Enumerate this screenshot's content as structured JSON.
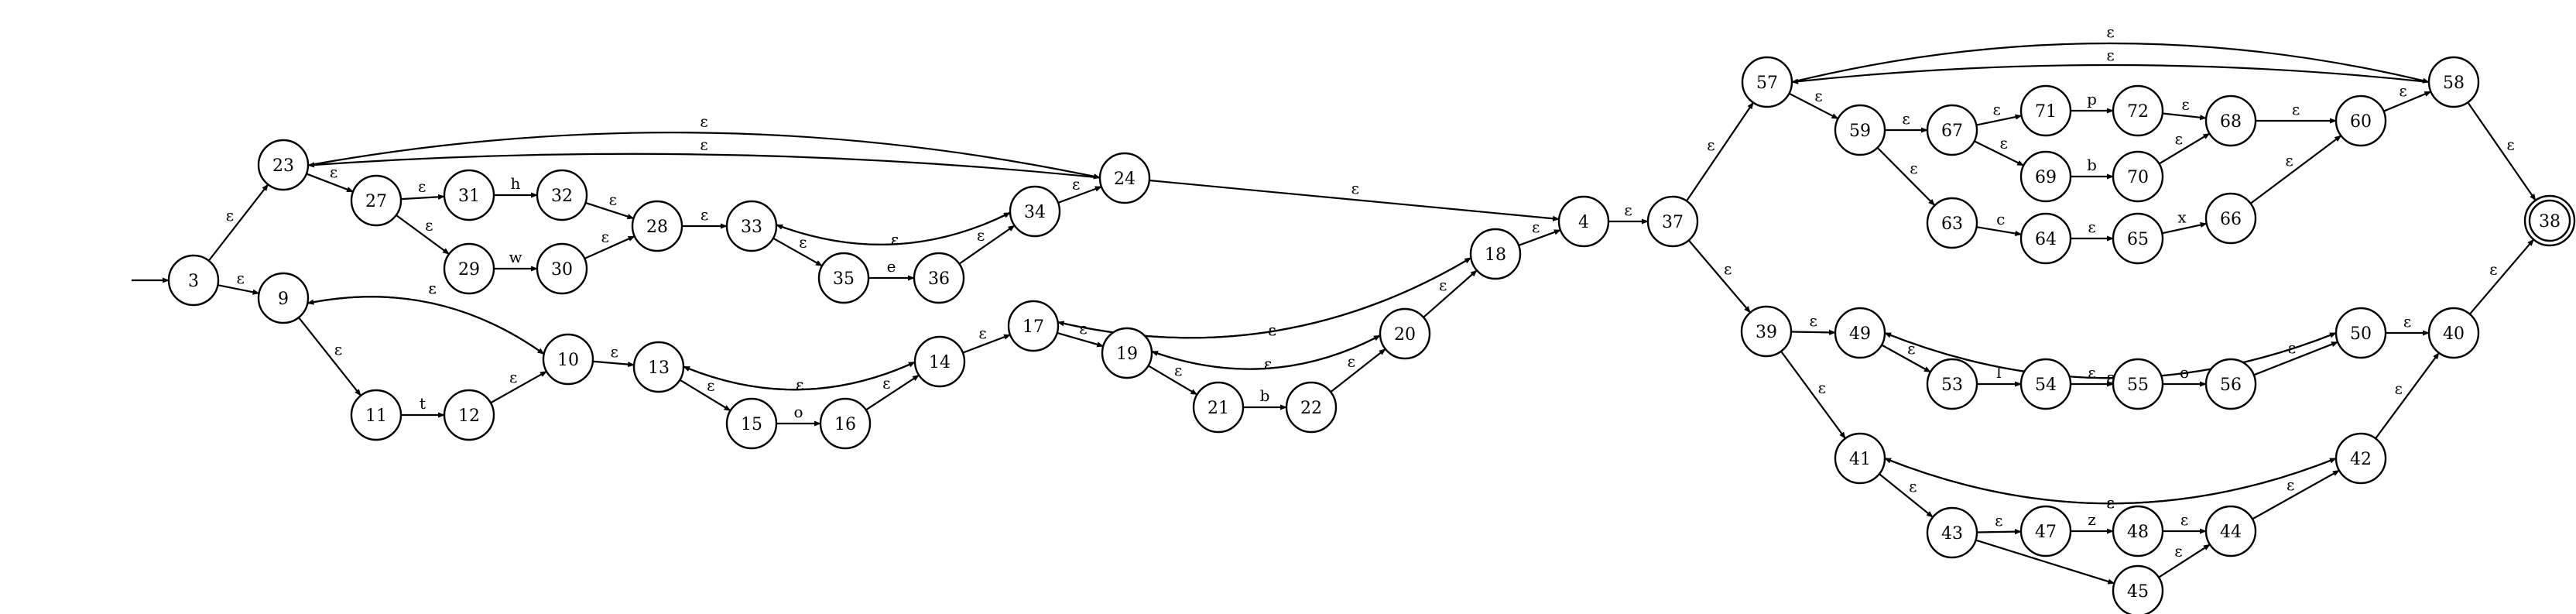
{
  "diagram": {
    "type": "nfa",
    "start_state": "3",
    "accept_states": [
      "38"
    ],
    "states": [
      "3",
      "9",
      "10",
      "11",
      "12",
      "13",
      "14",
      "15",
      "16",
      "17",
      "18",
      "19",
      "20",
      "21",
      "22",
      "23",
      "24",
      "27",
      "28",
      "29",
      "30",
      "31",
      "32",
      "33",
      "34",
      "35",
      "36",
      "4",
      "37",
      "38",
      "39",
      "40",
      "41",
      "42",
      "43",
      "44",
      "45",
      "47",
      "48",
      "49",
      "50",
      "53",
      "54",
      "55",
      "56",
      "57",
      "58",
      "59",
      "60",
      "63",
      "64",
      "65",
      "66",
      "67",
      "68",
      "69",
      "70",
      "71",
      "72"
    ],
    "transitions": [
      {
        "from": "3",
        "to": "23",
        "label": "ε"
      },
      {
        "from": "3",
        "to": "9",
        "label": "ε"
      },
      {
        "from": "23",
        "to": "27",
        "label": "ε"
      },
      {
        "from": "23",
        "to": "24",
        "label": "ε"
      },
      {
        "from": "24",
        "to": "23",
        "label": "ε"
      },
      {
        "from": "27",
        "to": "31",
        "label": "ε"
      },
      {
        "from": "27",
        "to": "29",
        "label": "ε"
      },
      {
        "from": "31",
        "to": "32",
        "label": "h"
      },
      {
        "from": "29",
        "to": "30",
        "label": "w"
      },
      {
        "from": "32",
        "to": "28",
        "label": "ε"
      },
      {
        "from": "30",
        "to": "28",
        "label": "ε"
      },
      {
        "from": "28",
        "to": "33",
        "label": "ε"
      },
      {
        "from": "33",
        "to": "34",
        "label": "ε"
      },
      {
        "from": "34",
        "to": "33",
        "label": "ε"
      },
      {
        "from": "33",
        "to": "35",
        "label": "ε"
      },
      {
        "from": "35",
        "to": "36",
        "label": "e"
      },
      {
        "from": "36",
        "to": "34",
        "label": "ε"
      },
      {
        "from": "34",
        "to": "24",
        "label": "ε"
      },
      {
        "from": "24",
        "to": "4",
        "label": "ε"
      },
      {
        "from": "9",
        "to": "10",
        "label": "ε"
      },
      {
        "from": "10",
        "to": "9",
        "label": "ε"
      },
      {
        "from": "9",
        "to": "11",
        "label": "ε"
      },
      {
        "from": "11",
        "to": "12",
        "label": "t"
      },
      {
        "from": "12",
        "to": "10",
        "label": "ε"
      },
      {
        "from": "10",
        "to": "13",
        "label": "ε"
      },
      {
        "from": "13",
        "to": "14",
        "label": "ε"
      },
      {
        "from": "14",
        "to": "13",
        "label": "ε"
      },
      {
        "from": "13",
        "to": "15",
        "label": "ε"
      },
      {
        "from": "15",
        "to": "16",
        "label": "o"
      },
      {
        "from": "16",
        "to": "14",
        "label": "ε"
      },
      {
        "from": "14",
        "to": "17",
        "label": "ε"
      },
      {
        "from": "17",
        "to": "18",
        "label": "ε"
      },
      {
        "from": "18",
        "to": "17",
        "label": "ε"
      },
      {
        "from": "17",
        "to": "19",
        "label": "ε"
      },
      {
        "from": "19",
        "to": "20",
        "label": "ε"
      },
      {
        "from": "20",
        "to": "19",
        "label": "ε"
      },
      {
        "from": "19",
        "to": "21",
        "label": "ε"
      },
      {
        "from": "21",
        "to": "22",
        "label": "b"
      },
      {
        "from": "22",
        "to": "20",
        "label": "ε"
      },
      {
        "from": "20",
        "to": "18",
        "label": "ε"
      },
      {
        "from": "18",
        "to": "4",
        "label": "ε"
      },
      {
        "from": "4",
        "to": "37",
        "label": "ε"
      },
      {
        "from": "37",
        "to": "57",
        "label": "ε"
      },
      {
        "from": "37",
        "to": "39",
        "label": "ε"
      },
      {
        "from": "57",
        "to": "58",
        "label": "ε"
      },
      {
        "from": "58",
        "to": "57",
        "label": "ε"
      },
      {
        "from": "57",
        "to": "59",
        "label": "ε"
      },
      {
        "from": "59",
        "to": "67",
        "label": "ε"
      },
      {
        "from": "59",
        "to": "63",
        "label": "ε"
      },
      {
        "from": "67",
        "to": "71",
        "label": "ε"
      },
      {
        "from": "67",
        "to": "69",
        "label": "ε"
      },
      {
        "from": "71",
        "to": "72",
        "label": "p"
      },
      {
        "from": "72",
        "to": "68",
        "label": "ε"
      },
      {
        "from": "69",
        "to": "70",
        "label": "b"
      },
      {
        "from": "70",
        "to": "68",
        "label": "ε"
      },
      {
        "from": "68",
        "to": "60",
        "label": "ε"
      },
      {
        "from": "63",
        "to": "64",
        "label": "c"
      },
      {
        "from": "64",
        "to": "65",
        "label": "ε"
      },
      {
        "from": "65",
        "to": "66",
        "label": "x"
      },
      {
        "from": "66",
        "to": "60",
        "label": "ε"
      },
      {
        "from": "60",
        "to": "58",
        "label": "ε"
      },
      {
        "from": "58",
        "to": "38",
        "label": "ε"
      },
      {
        "from": "39",
        "to": "49",
        "label": "ε"
      },
      {
        "from": "39",
        "to": "41",
        "label": "ε"
      },
      {
        "from": "49",
        "to": "50",
        "label": "ε"
      },
      {
        "from": "50",
        "to": "49",
        "label": "ε"
      },
      {
        "from": "49",
        "to": "53",
        "label": "ε"
      },
      {
        "from": "53",
        "to": "54",
        "label": "l"
      },
      {
        "from": "54",
        "to": "55",
        "label": "ε"
      },
      {
        "from": "55",
        "to": "56",
        "label": "o"
      },
      {
        "from": "56",
        "to": "50",
        "label": "ε"
      },
      {
        "from": "50",
        "to": "40",
        "label": "ε"
      },
      {
        "from": "41",
        "to": "42",
        "label": "ε"
      },
      {
        "from": "42",
        "to": "41",
        "label": "ε"
      },
      {
        "from": "41",
        "to": "43",
        "label": "ε"
      },
      {
        "from": "43",
        "to": "47",
        "label": "ε"
      },
      {
        "from": "43",
        "to": "45",
        "label": "ε"
      },
      {
        "from": "47",
        "to": "48",
        "label": "z"
      },
      {
        "from": "48",
        "to": "44",
        "label": "ε"
      },
      {
        "from": "45",
        "to": "44",
        "label": "ε"
      },
      {
        "from": "44",
        "to": "42",
        "label": "ε"
      },
      {
        "from": "42",
        "to": "40",
        "label": "ε"
      },
      {
        "from": "40",
        "to": "38",
        "label": "ε"
      }
    ]
  }
}
